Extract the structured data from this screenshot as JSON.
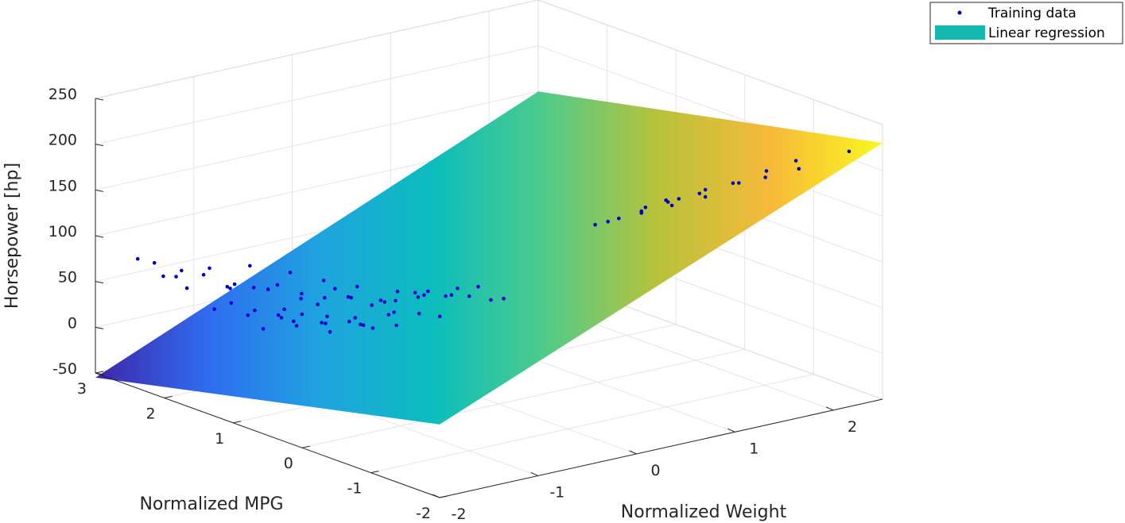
{
  "chart_data": {
    "type": "scatter",
    "subtype": "3d-scatter-with-regression-plane",
    "title": "",
    "xlabel": "Normalized Weight",
    "ylabel": "Normalized MPG",
    "zlabel": "Horsepower [hp]",
    "xlim": [
      -2,
      2.5
    ],
    "ylim": [
      -2,
      3
    ],
    "zlim": [
      -50,
      250
    ],
    "xticks": [
      "-2",
      "-1",
      "0",
      "1",
      "2"
    ],
    "yticks": [
      "-2",
      "-1",
      "0",
      "1",
      "2",
      "3"
    ],
    "zticks": [
      "-50",
      "0",
      "50",
      "100",
      "150",
      "200",
      "250"
    ],
    "grid": true,
    "legend_position": "top-right",
    "legend": [
      "Training data",
      "Linear regression"
    ],
    "colors": {
      "points": "#0000cc",
      "legend_surface": "#14b8b0",
      "axis": "#262626",
      "grid": "#e5e5e5"
    },
    "colormap": [
      "#3e26a8",
      "#2f6cf0",
      "#1fa3e0",
      "#0bbdbd",
      "#4fcb8a",
      "#b8c23a",
      "#f7b93a",
      "#f9f71e"
    ],
    "regression_plane": {
      "corners": [
        {
          "x": -2,
          "y": 3,
          "z": -55
        },
        {
          "x": -2,
          "y": -2,
          "z": 30
        },
        {
          "x": 2.5,
          "y": -2,
          "z": 230
        },
        {
          "x": 2.5,
          "y": 3,
          "z": 150
        }
      ]
    },
    "series": [
      {
        "name": "Training data",
        "points": [
          [
            -1.8,
            2.3,
            70
          ],
          [
            -1.6,
            2.0,
            75
          ],
          [
            -1.7,
            2.1,
            60
          ],
          [
            -1.5,
            1.8,
            65
          ],
          [
            -1.6,
            1.6,
            55
          ],
          [
            -1.4,
            1.9,
            58
          ],
          [
            -1.5,
            1.4,
            50
          ],
          [
            -1.3,
            1.7,
            62
          ],
          [
            -1.4,
            1.2,
            48
          ],
          [
            -1.2,
            1.5,
            68
          ],
          [
            -1.3,
            1.0,
            52
          ],
          [
            -1.1,
            1.3,
            56
          ],
          [
            -1.2,
            0.8,
            45
          ],
          [
            -1.0,
            1.1,
            60
          ],
          [
            -1.1,
            0.6,
            50
          ],
          [
            -0.9,
            0.9,
            64
          ],
          [
            -1.0,
            0.4,
            46
          ],
          [
            -0.8,
            0.7,
            58
          ],
          [
            -0.9,
            0.2,
            52
          ],
          [
            -0.7,
            0.5,
            66
          ],
          [
            -1.7,
            1.7,
            48
          ],
          [
            -1.5,
            1.5,
            42
          ],
          [
            -1.3,
            1.3,
            40
          ],
          [
            -1.1,
            1.0,
            38
          ],
          [
            -0.9,
            0.8,
            44
          ],
          [
            -0.7,
            0.6,
            48
          ],
          [
            -0.6,
            0.3,
            55
          ],
          [
            -0.5,
            0.5,
            70
          ],
          [
            -0.6,
            0.0,
            60
          ],
          [
            -0.4,
            0.2,
            72
          ],
          [
            -1.6,
            2.4,
            62
          ],
          [
            -1.4,
            2.2,
            72
          ],
          [
            -1.2,
            1.9,
            78
          ],
          [
            -1.0,
            1.6,
            74
          ],
          [
            -0.8,
            1.4,
            66
          ],
          [
            -0.6,
            1.2,
            60
          ],
          [
            -0.4,
            0.9,
            58
          ],
          [
            -0.3,
            0.6,
            64
          ],
          [
            -0.2,
            0.3,
            70
          ],
          [
            -0.3,
            0.0,
            75
          ],
          [
            -1.45,
            1.35,
            30
          ],
          [
            -1.25,
            1.15,
            34
          ],
          [
            -1.05,
            0.95,
            28
          ],
          [
            -0.85,
            0.75,
            36
          ],
          [
            -0.65,
            0.55,
            40
          ],
          [
            -0.45,
            0.35,
            46
          ],
          [
            -1.35,
            1.05,
            44
          ],
          [
            -1.15,
            0.85,
            50
          ],
          [
            -0.95,
            0.65,
            42
          ],
          [
            -0.75,
            0.45,
            56
          ],
          [
            -1.55,
            0.9,
            66
          ],
          [
            -1.35,
            0.7,
            72
          ],
          [
            -1.15,
            0.5,
            80
          ],
          [
            -0.95,
            0.3,
            76
          ],
          [
            -0.75,
            0.1,
            82
          ],
          [
            -0.55,
            -0.1,
            85
          ],
          [
            -1.25,
            2.05,
            55
          ],
          [
            -1.05,
            1.85,
            50
          ],
          [
            -0.85,
            1.65,
            46
          ],
          [
            -0.65,
            1.45,
            52
          ],
          [
            -0.5,
            1.0,
            48
          ],
          [
            -0.4,
            0.8,
            52
          ],
          [
            -0.3,
            0.4,
            56
          ],
          [
            -0.2,
            0.2,
            62
          ],
          [
            -0.1,
            -0.1,
            68
          ],
          [
            -0.2,
            -0.3,
            76
          ],
          [
            -0.3,
            -0.5,
            86
          ],
          [
            -0.5,
            -0.6,
            92
          ],
          [
            -0.7,
            -0.4,
            104
          ],
          [
            -0.9,
            -0.2,
            96
          ],
          [
            -0.15,
            0.55,
            40
          ],
          [
            0.0,
            0.35,
            48
          ],
          [
            0.1,
            0.0,
            52
          ],
          [
            -0.05,
            0.75,
            60
          ],
          [
            0.15,
            -0.2,
            66
          ],
          [
            0.05,
            -0.4,
            78
          ],
          [
            -1.85,
            2.6,
            82
          ],
          [
            -1.75,
            2.5,
            78
          ],
          [
            -1.65,
            2.25,
            74
          ],
          [
            -0.35,
            -0.2,
            92
          ],
          [
            0.7,
            -0.4,
            140
          ],
          [
            0.8,
            -0.6,
            150
          ],
          [
            0.9,
            -0.3,
            136
          ],
          [
            1.0,
            -0.7,
            160
          ],
          [
            1.1,
            -0.5,
            148
          ],
          [
            1.2,
            -0.9,
            170
          ],
          [
            1.3,
            -0.6,
            156
          ],
          [
            1.4,
            -1.0,
            178
          ],
          [
            1.5,
            -0.8,
            164
          ],
          [
            1.6,
            -1.2,
            186
          ],
          [
            1.7,
            -0.9,
            172
          ],
          [
            1.8,
            -1.3,
            190
          ],
          [
            1.9,
            -1.1,
            176
          ],
          [
            2.0,
            -1.5,
            200
          ],
          [
            2.1,
            -1.2,
            184
          ],
          [
            2.2,
            -1.6,
            204
          ],
          [
            2.3,
            -1.4,
            192
          ],
          [
            1.9,
            -1.6,
            214
          ],
          [
            2.3,
            -1.8,
            220
          ],
          [
            2.4,
            -1.5,
            206
          ],
          [
            0.8,
            0.4,
            105
          ],
          [
            1.0,
            0.1,
            122
          ],
          [
            1.2,
            -0.1,
            132
          ],
          [
            1.4,
            -0.3,
            146
          ],
          [
            1.6,
            -0.5,
            154
          ],
          [
            1.8,
            -0.7,
            166
          ],
          [
            2.0,
            -0.9,
            174
          ],
          [
            2.2,
            -1.0,
            168
          ],
          [
            0.9,
            0.7,
            110
          ],
          [
            1.1,
            0.4,
            125
          ],
          [
            1.3,
            0.2,
            134
          ],
          [
            1.5,
            0.0,
            142
          ],
          [
            1.7,
            -0.2,
            150
          ],
          [
            1.9,
            -0.4,
            158
          ],
          [
            2.1,
            -0.6,
            166
          ],
          [
            2.3,
            -0.8,
            172
          ],
          [
            0.6,
            0.2,
            92
          ],
          [
            0.7,
            0.6,
            84
          ],
          [
            0.9,
            1.0,
            96
          ],
          [
            1.1,
            0.8,
            104
          ],
          [
            1.3,
            0.5,
            116
          ],
          [
            1.5,
            0.3,
            128
          ],
          [
            1.7,
            0.1,
            138
          ],
          [
            2.0,
            0.0,
            150
          ],
          [
            2.2,
            -0.3,
            158
          ],
          [
            2.4,
            -0.5,
            166
          ],
          [
            1.6,
            -1.6,
            210
          ],
          [
            1.4,
            -1.4,
            196
          ],
          [
            1.2,
            -1.2,
            184
          ],
          [
            1.0,
            -1.0,
            176
          ],
          [
            0.75,
            -1.0,
            168
          ],
          [
            0.85,
            -1.3,
            182
          ],
          [
            1.05,
            -1.5,
            192
          ],
          [
            2.45,
            -1.1,
            196
          ],
          [
            2.35,
            -0.6,
            176
          ],
          [
            2.25,
            0.1,
            168
          ],
          [
            2.45,
            0.0,
            174
          ],
          [
            0.55,
            0.9,
            72
          ],
          [
            0.65,
            1.2,
            58
          ],
          [
            0.95,
            1.3,
            52
          ]
        ]
      }
    ]
  }
}
